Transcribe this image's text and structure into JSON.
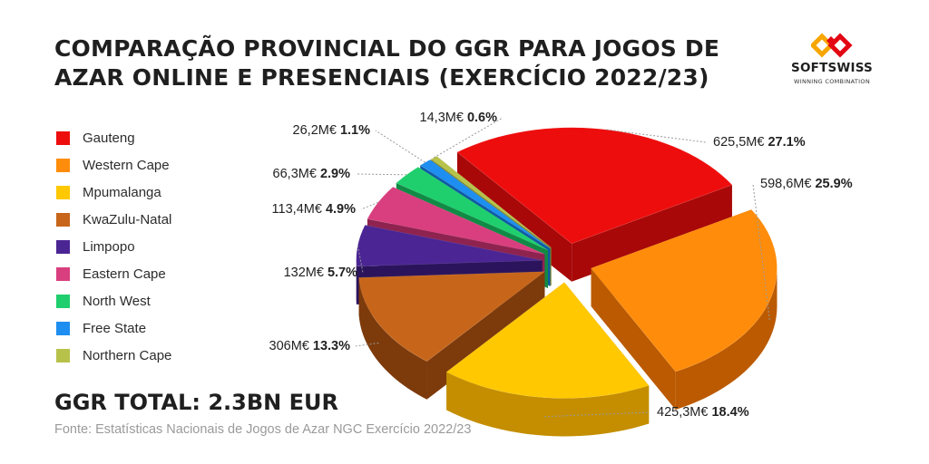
{
  "title": {
    "line1": "COMPARAÇÃO PROVINCIAL DO GGR PARA JOGOS DE",
    "line2": "AZAR ONLINE E PRESENCIAIS (EXERCÍCIO 2022/23)"
  },
  "logo": {
    "name": "SOFTSWISS",
    "tagline": "WINNING COMBINATION",
    "icon": "softswiss-logo-icon",
    "colors": [
      "#e30613",
      "#f7a600"
    ]
  },
  "total_label": "GGR TOTAL: 2.3BN EUR",
  "source": "Fonte: Estatísticas Nacionais de Jogos de Azar NGC Exercício 2022/23",
  "chart_data": {
    "type": "pie",
    "title": "COMPARAÇÃO PROVINCIAL DO GGR PARA JOGOS DE AZAR ONLINE E PRESENCIAIS (EXERCÍCIO 2022/23)",
    "legend_position": "left",
    "exploded": true,
    "three_d": true,
    "slices": [
      {
        "name": "Gauteng",
        "value_label": "625,5M€",
        "value": 625.5,
        "percent": 27.1,
        "percent_label": "27.1%",
        "color": "#ee0d0d",
        "dark": "#a80808"
      },
      {
        "name": "Western Cape",
        "value_label": "598,6M€",
        "value": 598.6,
        "percent": 25.9,
        "percent_label": "25.9%",
        "color": "#ff8c0a",
        "dark": "#bb5a00"
      },
      {
        "name": "Mpumalanga",
        "value_label": "425,3M€",
        "value": 425.3,
        "percent": 18.4,
        "percent_label": "18.4%",
        "color": "#ffc800",
        "dark": "#c48e00"
      },
      {
        "name": "KwaZulu-Natal",
        "value_label": "306M€",
        "value": 306,
        "percent": 13.3,
        "percent_label": "13.3%",
        "color": "#c7661a",
        "dark": "#7d3a0b"
      },
      {
        "name": "Limpopo",
        "value_label": "132M€",
        "value": 132,
        "percent": 5.7,
        "percent_label": "5.7%",
        "color": "#4b2594",
        "dark": "#2c145c"
      },
      {
        "name": "Eastern Cape",
        "value_label": "113,4M€",
        "value": 113.4,
        "percent": 4.9,
        "percent_label": "4.9%",
        "color": "#d93f7e",
        "dark": "#8f2350"
      },
      {
        "name": "North West",
        "value_label": "66,3M€",
        "value": 66.3,
        "percent": 2.9,
        "percent_label": "2.9%",
        "color": "#1fcf6e",
        "dark": "#118a45"
      },
      {
        "name": "Free State",
        "value_label": "26,2M€",
        "value": 26.2,
        "percent": 1.1,
        "percent_label": "1.1%",
        "color": "#1e8ef0",
        "dark": "#0e5ba3"
      },
      {
        "name": "Northern Cape",
        "value_label": "14,3M€",
        "value": 14.3,
        "percent": 0.6,
        "percent_label": "0.6%",
        "color": "#b7c24a",
        "dark": "#7b8427"
      }
    ]
  }
}
